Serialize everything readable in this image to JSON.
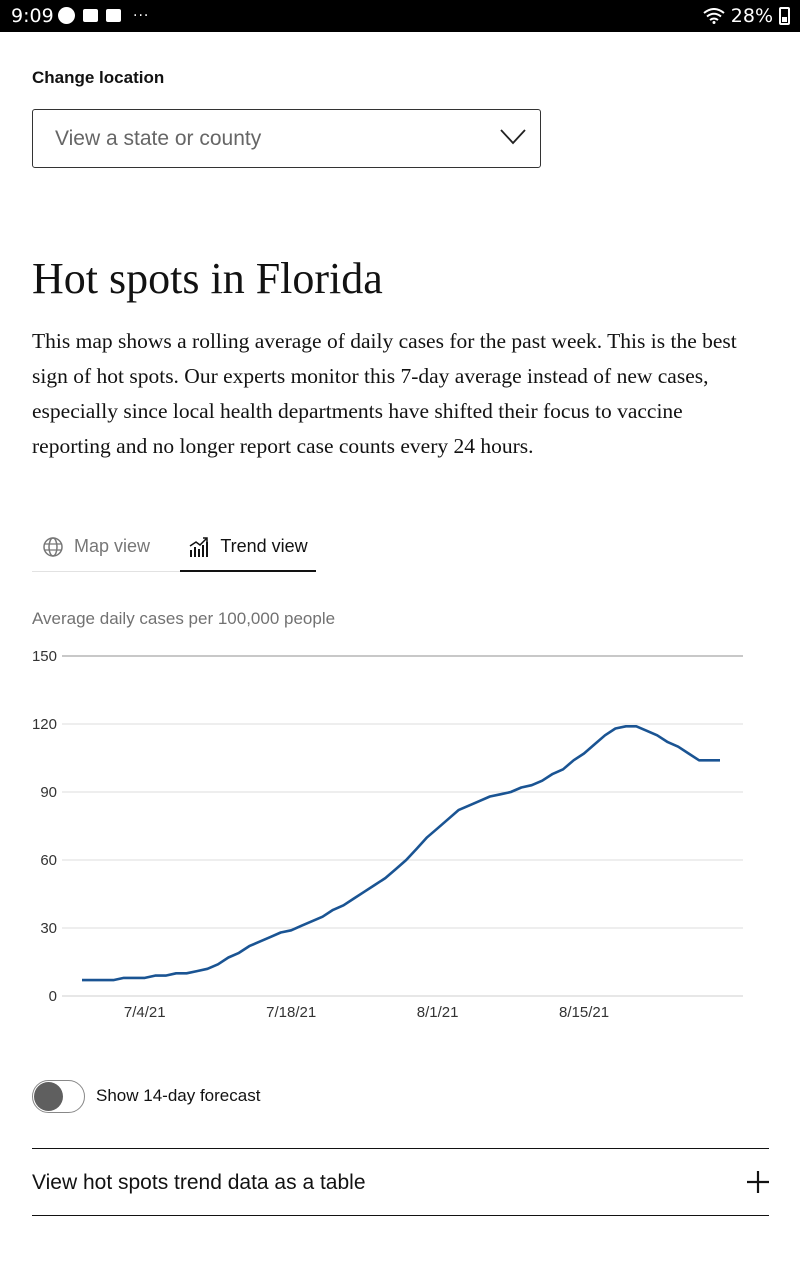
{
  "status_bar": {
    "time": "9:09",
    "more": "···",
    "battery": "28%"
  },
  "location": {
    "label": "Change location",
    "select_placeholder": "View a state or county"
  },
  "heading": {
    "title": "Hot spots in Florida",
    "description": "This map shows a rolling average of daily cases for the past week. This is the best sign of hot spots. Our experts monitor this 7-day average instead of new cases, especially since local health departments have shifted their focus to vaccine reporting and no longer report case counts every 24 hours."
  },
  "tabs": [
    {
      "label": "Map view",
      "icon": "globe-icon",
      "active": false
    },
    {
      "label": "Trend view",
      "icon": "trend-chart-icon",
      "active": true
    }
  ],
  "chart_data": {
    "type": "line",
    "title": "Average daily cases per 100,000 people",
    "xlabel": "",
    "ylabel": "",
    "ylim": [
      0,
      150
    ],
    "y_ticks": [
      0,
      30,
      60,
      90,
      120,
      150
    ],
    "x_tick_labels": [
      {
        "label": "7/4/21",
        "day": 6
      },
      {
        "label": "7/18/21",
        "day": 20
      },
      {
        "label": "8/1/21",
        "day": 34
      },
      {
        "label": "8/15/21",
        "day": 48
      }
    ],
    "color": "#1a5493",
    "series": [
      {
        "name": "Florida",
        "x": [
          0,
          1,
          2,
          3,
          4,
          5,
          6,
          7,
          8,
          9,
          10,
          11,
          12,
          13,
          14,
          15,
          16,
          17,
          18,
          19,
          20,
          21,
          22,
          23,
          24,
          25,
          26,
          27,
          28,
          29,
          30,
          31,
          32,
          33,
          34,
          35,
          36,
          37,
          38,
          39,
          40,
          41,
          42,
          43,
          44,
          45,
          46,
          47,
          48,
          49,
          50,
          51,
          52,
          53,
          54,
          55,
          56,
          57,
          58,
          59,
          60,
          61
        ],
        "values": [
          7,
          7,
          7,
          7,
          8,
          8,
          8,
          9,
          9,
          10,
          10,
          11,
          12,
          14,
          17,
          19,
          22,
          24,
          26,
          28,
          29,
          31,
          33,
          35,
          38,
          40,
          43,
          46,
          49,
          52,
          56,
          60,
          65,
          70,
          74,
          78,
          82,
          84,
          86,
          88,
          89,
          90,
          92,
          93,
          95,
          98,
          100,
          104,
          107,
          111,
          115,
          118,
          119,
          119,
          117,
          115,
          112,
          110,
          107,
          104,
          104,
          104
        ]
      }
    ]
  },
  "forecast_toggle": {
    "label": "Show 14-day forecast"
  },
  "table_accordion": {
    "label": "View hot spots trend data as a table"
  }
}
